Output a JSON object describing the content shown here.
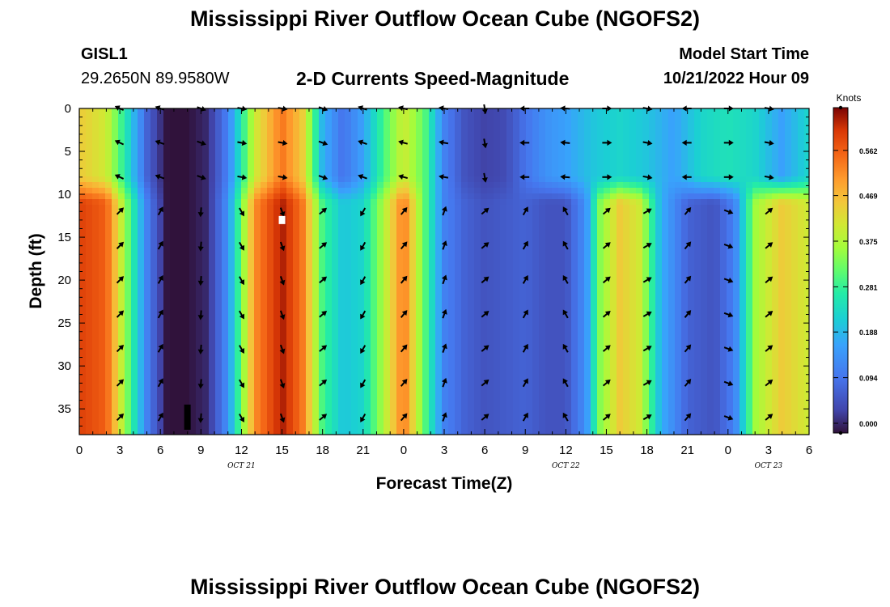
{
  "title": "Mississippi River Outflow Ocean Cube (NGOFS2)",
  "station": {
    "id": "GISL1",
    "coords": "29.2650N  89.9580W"
  },
  "subtitle": "2-D Currents Speed-Magnitude",
  "model_start": {
    "label": "Model Start Time",
    "value": "10/21/2022 Hour 09"
  },
  "colorbar": {
    "units": "Knots",
    "ticks": [
      "0.562",
      "0.469",
      "0.375",
      "0.281",
      "0.188",
      "0.094",
      "0.000"
    ],
    "tick_values": [
      0.562,
      0.469,
      0.375,
      0.281,
      0.188,
      0.094,
      0.0
    ]
  },
  "footer_title": "Mississippi River Outflow Ocean Cube (NGOFS2)",
  "chart_data": {
    "type": "heatmap",
    "title": "2-D Currents Speed-Magnitude",
    "xlabel": "Forecast Time(Z)",
    "ylabel": "Depth (ft)",
    "x_tick_labels": [
      "0",
      "3",
      "6",
      "9",
      "12",
      "15",
      "18",
      "21",
      "0",
      "3",
      "6",
      "9",
      "12",
      "15",
      "18",
      "21",
      "0",
      "3",
      "6"
    ],
    "x_hours": [
      0,
      3,
      6,
      9,
      12,
      15,
      18,
      21,
      24,
      27,
      30,
      33,
      36,
      39,
      42,
      45,
      48,
      51,
      54
    ],
    "date_labels": [
      {
        "label": "OCT 21",
        "hour": 12
      },
      {
        "label": "OCT 22",
        "hour": 36
      },
      {
        "label": "OCT 23",
        "hour": 51
      }
    ],
    "y_tick_labels": [
      "0",
      "5",
      "10",
      "15",
      "20",
      "25",
      "30",
      "35"
    ],
    "y_ticks": [
      0,
      5,
      10,
      15,
      20,
      25,
      30,
      35
    ],
    "xlim": [
      0,
      54
    ],
    "ylim": [
      0,
      38
    ],
    "grid": false,
    "units": "Knots",
    "speed_range": [
      0.0,
      0.6
    ],
    "speed_profile_upper_0_to_8ft": [
      [
        0,
        0.42
      ],
      [
        2,
        0.38
      ],
      [
        3.5,
        0.24
      ],
      [
        5,
        0.08
      ],
      [
        6.5,
        0.0
      ],
      [
        8,
        0.0
      ],
      [
        9.5,
        0.02
      ],
      [
        11,
        0.12
      ],
      [
        13,
        0.38
      ],
      [
        15,
        0.5
      ],
      [
        16.5,
        0.42
      ],
      [
        18,
        0.18
      ],
      [
        19.5,
        0.1
      ],
      [
        21,
        0.16
      ],
      [
        22.5,
        0.28
      ],
      [
        24,
        0.38
      ],
      [
        25.5,
        0.3
      ],
      [
        27,
        0.12
      ],
      [
        28.5,
        0.06
      ],
      [
        30,
        0.04
      ],
      [
        31.5,
        0.05
      ],
      [
        33,
        0.1
      ],
      [
        34.5,
        0.14
      ],
      [
        36,
        0.16
      ],
      [
        38,
        0.2
      ],
      [
        40,
        0.22
      ],
      [
        42,
        0.2
      ],
      [
        44,
        0.16
      ],
      [
        46,
        0.22
      ],
      [
        48,
        0.24
      ],
      [
        50,
        0.22
      ],
      [
        52,
        0.16
      ],
      [
        54,
        0.22
      ]
    ],
    "speed_profile_lower_11_to_38ft": [
      [
        0,
        0.55
      ],
      [
        2,
        0.52
      ],
      [
        3.5,
        0.32
      ],
      [
        5,
        0.12
      ],
      [
        6.5,
        0.0
      ],
      [
        8,
        0.0
      ],
      [
        9.5,
        0.02
      ],
      [
        11,
        0.14
      ],
      [
        13,
        0.48
      ],
      [
        15,
        0.58
      ],
      [
        16.5,
        0.5
      ],
      [
        18,
        0.28
      ],
      [
        19.5,
        0.2
      ],
      [
        21,
        0.22
      ],
      [
        22.5,
        0.35
      ],
      [
        24,
        0.5
      ],
      [
        25.5,
        0.3
      ],
      [
        27,
        0.12
      ],
      [
        28.5,
        0.08
      ],
      [
        30,
        0.06
      ],
      [
        31.5,
        0.07
      ],
      [
        33,
        0.08
      ],
      [
        34.5,
        0.06
      ],
      [
        36,
        0.06
      ],
      [
        37.5,
        0.14
      ],
      [
        38.5,
        0.32
      ],
      [
        40,
        0.42
      ],
      [
        41.5,
        0.38
      ],
      [
        43,
        0.18
      ],
      [
        45,
        0.08
      ],
      [
        47,
        0.06
      ],
      [
        48.5,
        0.12
      ],
      [
        50,
        0.34
      ],
      [
        52,
        0.42
      ],
      [
        54,
        0.38
      ]
    ],
    "arrow_grid": {
      "hours": [
        3,
        6,
        9,
        12,
        15,
        18,
        21,
        24,
        27,
        30,
        33,
        36,
        39,
        42,
        45,
        48,
        51
      ],
      "depths_ft": [
        0,
        4,
        8,
        12,
        16,
        20,
        24,
        28,
        32,
        36
      ],
      "direction_deg_by_hour_upper": {
        "3": 205,
        "6": 200,
        "9": 20,
        "12": 10,
        "15": 10,
        "18": 20,
        "21": 200,
        "24": 195,
        "27": 190,
        "30": 80,
        "33": 180,
        "36": 185,
        "39": 0,
        "42": 10,
        "45": 180,
        "48": 0,
        "51": 10
      },
      "direction_deg_by_hour_lower": {
        "3": 315,
        "6": 300,
        "9": 95,
        "12": 60,
        "15": 70,
        "18": 320,
        "21": 120,
        "24": 310,
        "27": 290,
        "30": 320,
        "33": 300,
        "36": 240,
        "39": 320,
        "42": 330,
        "45": 310,
        "48": 20,
        "51": 320
      }
    },
    "markers": [
      {
        "type": "white-box",
        "hour": 15,
        "depth_ft": 13
      },
      {
        "type": "black-bar",
        "hour": 8,
        "depth_ft": [
          34.5,
          38
        ]
      }
    ]
  }
}
